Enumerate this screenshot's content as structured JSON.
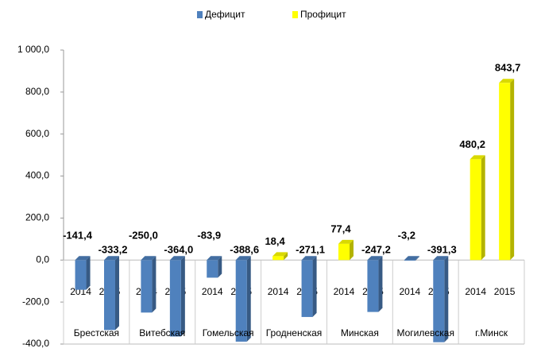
{
  "chart_data": {
    "type": "bar3d",
    "groups": [
      "Брестская",
      "Витебская",
      "Гомельская",
      "Гродненская",
      "Минская",
      "Могилевская",
      "г.Минск"
    ],
    "categories": [
      "2014",
      "2015",
      "2014",
      "2015",
      "2014",
      "2015",
      "2014",
      "2015",
      "2014",
      "2015",
      "2014",
      "2015",
      "2014",
      "2015"
    ],
    "series": [
      {
        "name": "Дефицит",
        "color": "#4f81bd",
        "values": [
          -141.4,
          -333.2,
          -250.0,
          -364.0,
          -83.9,
          -388.6,
          null,
          -271.1,
          null,
          -247.2,
          -3.2,
          -391.3,
          null,
          null
        ],
        "value_labels": [
          "-141,4",
          "-333,2",
          "-250,0",
          "-364,0",
          "-83,9",
          "-388,6",
          null,
          "-271,1",
          null,
          "-247,2",
          "-3,2",
          "-391,3",
          null,
          null
        ]
      },
      {
        "name": "Профицит",
        "color": "#ffff00",
        "values": [
          null,
          null,
          null,
          null,
          null,
          null,
          18.4,
          null,
          77.4,
          null,
          null,
          null,
          480.2,
          843.7
        ],
        "value_labels": [
          null,
          null,
          null,
          null,
          null,
          null,
          "18,4",
          null,
          "77,4",
          null,
          null,
          null,
          "480,2",
          "843,7"
        ]
      }
    ],
    "ylim": [
      -400,
      1000
    ],
    "yticks": [
      {
        "value": -400,
        "label": "-400,0"
      },
      {
        "value": -200,
        "label": "-200,0"
      },
      {
        "value": 0,
        "label": "0,0"
      },
      {
        "value": 200,
        "label": "200,0"
      },
      {
        "value": 400,
        "label": "400,0"
      },
      {
        "value": 600,
        "label": "600,0"
      },
      {
        "value": 800,
        "label": "800,0"
      },
      {
        "value": 1000,
        "label": "1 000,0"
      }
    ],
    "legend": "top"
  }
}
